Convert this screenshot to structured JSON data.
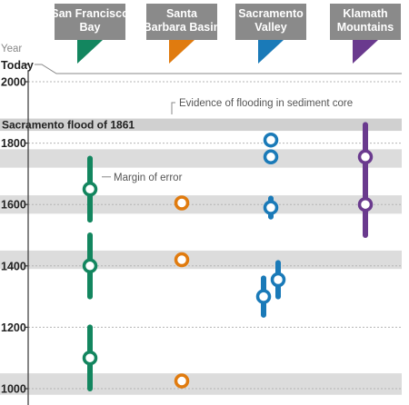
{
  "chart_data": {
    "type": "scatter",
    "y_axis_label": "Year",
    "top_label": "Today",
    "ylim": [
      980,
      2050
    ],
    "yticks": [
      1000,
      1200,
      1400,
      1600,
      1800,
      2000
    ],
    "highlight_band": {
      "label": "Sacramento flood of 1861",
      "from": 1840,
      "to": 1880
    },
    "shaded_bands": [
      {
        "from": 1720,
        "to": 1780
      },
      {
        "from": 1570,
        "to": 1630
      },
      {
        "from": 1390,
        "to": 1450
      },
      {
        "from": 980,
        "to": 1050
      }
    ],
    "annotations": {
      "margin_of_error": "Margin of error",
      "evidence": "Evidence of flooding in sediment core"
    },
    "series": [
      {
        "name": "San Francisco Bay",
        "color": "#13865f",
        "points": [
          {
            "year": 1650,
            "low": 1550,
            "high": 1750
          },
          {
            "year": 1400,
            "low": 1300,
            "high": 1500
          },
          {
            "year": 1100,
            "low": 1000,
            "high": 1200
          }
        ]
      },
      {
        "name": "Santa Barbara Basin",
        "color": "#e07b0f",
        "points": [
          {
            "year": 1605
          },
          {
            "year": 1420
          },
          {
            "year": 1025
          }
        ]
      },
      {
        "name": "Sacramento Valley",
        "color": "#1a7ab8",
        "points": [
          {
            "year": 1810
          },
          {
            "year": 1755
          },
          {
            "year": 1590,
            "low": 1560,
            "high": 1620
          },
          {
            "year": 1355,
            "low": 1300,
            "high": 1410
          },
          {
            "year": 1300,
            "low": 1240,
            "high": 1360
          }
        ]
      },
      {
        "name": "Klamath Mountains",
        "color": "#6a3a8e",
        "points": [
          {
            "year": 1755,
            "low": 1650,
            "high": 1860
          },
          {
            "year": 1600,
            "low": 1500,
            "high": 1700
          }
        ]
      }
    ],
    "tab_labels": [
      [
        "San Francisco",
        "Bay"
      ],
      [
        "Santa",
        "Barbara Basin"
      ],
      [
        "Sacramento",
        "Valley"
      ],
      [
        "Klamath",
        "Mountains"
      ]
    ]
  }
}
